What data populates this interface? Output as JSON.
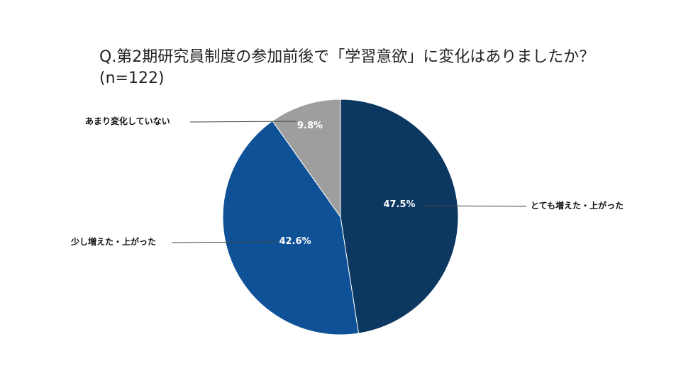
{
  "chart_data": {
    "type": "pie",
    "title": "Q.第2期研究員制度の参加前後で「学習意欲」に変化はありましたか？(n=122)",
    "slices": [
      {
        "label": "とても増えた・上がった",
        "value": 47.5,
        "value_label": "47.5%",
        "color": "#0b3761"
      },
      {
        "label": "少し増えた・上がった",
        "value": 42.6,
        "value_label": "42.6%",
        "color": "#0e5196"
      },
      {
        "label": "あまり変化していない",
        "value": 9.8,
        "value_label": "9.8%",
        "color": "#9e9e9e"
      }
    ],
    "start": "12 o'clock",
    "direction": "clockwise",
    "legend": "none (callout labels)"
  }
}
